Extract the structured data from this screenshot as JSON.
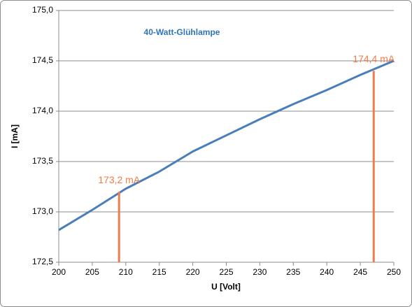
{
  "chart_data": {
    "type": "line",
    "title": "40-Watt-Glühlampe",
    "x_label": "U [Volt]",
    "y_label": "I [mA]",
    "x": [
      200,
      205,
      210,
      215,
      220,
      225,
      230,
      235,
      240,
      245,
      250
    ],
    "series": [
      {
        "color": "#4a7ebb",
        "values": [
          172.82,
          173.02,
          173.23,
          173.4,
          173.6,
          173.76,
          173.92,
          174.07,
          174.21,
          174.36,
          174.5
        ]
      }
    ],
    "markers": [
      {
        "x": 209,
        "value": 173.2,
        "label": "173,2 mA"
      },
      {
        "x": 247,
        "value": 174.4,
        "label": "174,4 mA"
      }
    ],
    "marker_color": "#f07c4a",
    "xlim": [
      200,
      250
    ],
    "ylim": [
      172.5,
      175
    ],
    "xticks": [
      200,
      205,
      210,
      215,
      220,
      225,
      230,
      235,
      240,
      245,
      250
    ],
    "yticks": [
      {
        "value": 172.5,
        "label": "172,5"
      },
      {
        "value": 173,
        "label": "173,0"
      },
      {
        "value": 173.5,
        "label": "173,5"
      },
      {
        "value": 174,
        "label": "174,0"
      },
      {
        "value": 174.5,
        "label": "174,5"
      },
      {
        "value": 175,
        "label": "175,0"
      }
    ],
    "grid": true
  }
}
